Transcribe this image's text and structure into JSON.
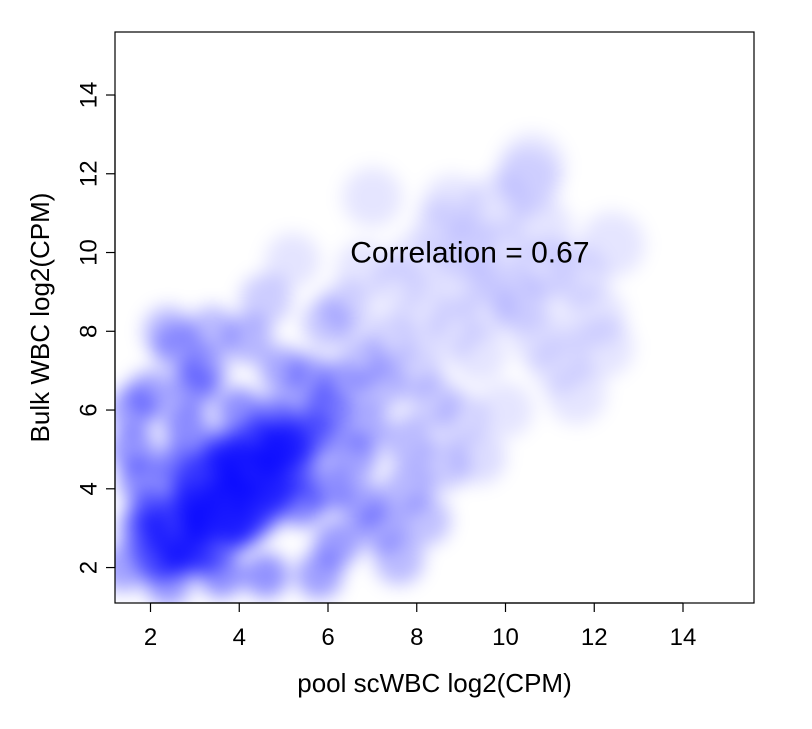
{
  "chart_data": {
    "type": "scatter",
    "style": "smoothScatter density",
    "title": "",
    "xlabel": "pool scWBC log2(CPM)",
    "ylabel": "Bulk WBC log2(CPM)",
    "xlim": [
      1.2,
      15.6
    ],
    "ylim": [
      1.1,
      15.6
    ],
    "xticks": [
      2,
      4,
      6,
      8,
      10,
      12,
      14
    ],
    "yticks": [
      2,
      4,
      6,
      8,
      10,
      12,
      14
    ],
    "xtick_labels": [
      "2",
      "4",
      "6",
      "8",
      "10",
      "12",
      "14"
    ],
    "ytick_labels": [
      "2",
      "4",
      "6",
      "8",
      "10",
      "12",
      "14"
    ],
    "grid": false,
    "density_color": "#0000ff",
    "annotation": {
      "text": "Correlation = 0.67",
      "x": 6.5,
      "y": 10.0
    },
    "density_peak": [
      3.8,
      3.9
    ],
    "series": [
      {
        "points": [
          [
            3.8,
            3.9
          ],
          [
            4.2,
            4.4
          ],
          [
            3.2,
            3.2
          ],
          [
            4.8,
            4.9
          ],
          [
            2.6,
            2.6
          ],
          [
            3.5,
            4.4
          ],
          [
            5.2,
            5.2
          ],
          [
            4.4,
            3.6
          ],
          [
            2.2,
            2.2
          ],
          [
            3.0,
            2.4
          ],
          [
            2.0,
            3.4
          ],
          [
            4.8,
            5.8
          ],
          [
            6.0,
            6.0
          ],
          [
            5.6,
            6.8
          ],
          [
            6.8,
            7.2
          ],
          [
            7.4,
            7.8
          ],
          [
            8.2,
            8.4
          ],
          [
            9.0,
            9.2
          ],
          [
            9.8,
            10.0
          ],
          [
            10.5,
            11.8
          ],
          [
            10.2,
            9.0
          ],
          [
            8.6,
            10.6
          ],
          [
            7.6,
            9.2
          ],
          [
            6.4,
            8.6
          ],
          [
            5.2,
            9.8
          ],
          [
            7.0,
            11.4
          ],
          [
            4.2,
            7.8
          ],
          [
            3.0,
            6.6
          ],
          [
            2.0,
            6.4
          ],
          [
            2.6,
            7.6
          ],
          [
            1.6,
            5.0
          ],
          [
            1.4,
            2.0
          ],
          [
            1.8,
            4.2
          ],
          [
            2.8,
            5.6
          ],
          [
            3.2,
            7.0
          ],
          [
            5.4,
            3.6
          ],
          [
            6.0,
            4.0
          ],
          [
            6.6,
            4.8
          ],
          [
            7.2,
            3.0
          ],
          [
            6.2,
            2.6
          ],
          [
            7.8,
            5.2
          ],
          [
            8.4,
            6.2
          ],
          [
            9.0,
            5.8
          ],
          [
            9.4,
            7.4
          ],
          [
            10.0,
            6.0
          ],
          [
            10.4,
            8.6
          ],
          [
            11.0,
            9.6
          ],
          [
            11.6,
            9.4
          ],
          [
            12.0,
            8.4
          ],
          [
            12.4,
            10.2
          ],
          [
            11.2,
            7.2
          ],
          [
            9.8,
            11.2
          ],
          [
            8.0,
            9.8
          ],
          [
            7.8,
            4.0
          ],
          [
            8.6,
            4.6
          ],
          [
            5.8,
            1.8
          ],
          [
            4.6,
            1.8
          ],
          [
            3.6,
            1.8
          ],
          [
            2.4,
            1.6
          ],
          [
            3.0,
            3.6
          ],
          [
            4.0,
            3.0
          ],
          [
            4.4,
            5.2
          ],
          [
            5.0,
            4.4
          ],
          [
            5.6,
            5.4
          ],
          [
            6.2,
            6.6
          ],
          [
            6.8,
            5.6
          ],
          [
            7.2,
            6.6
          ],
          [
            8.0,
            7.0
          ],
          [
            8.8,
            8.0
          ],
          [
            9.6,
            8.6
          ],
          [
            3.6,
            5.0
          ],
          [
            2.6,
            4.6
          ],
          [
            1.8,
            3.0
          ],
          [
            1.6,
            6.0
          ],
          [
            2.4,
            8.0
          ],
          [
            10.6,
            12.2
          ],
          [
            8.8,
            11.2
          ],
          [
            9.2,
            10.0
          ],
          [
            6.0,
            8.2
          ],
          [
            6.8,
            9.6
          ],
          [
            5.0,
            7.0
          ],
          [
            4.0,
            6.0
          ],
          [
            4.6,
            8.8
          ],
          [
            3.4,
            8.0
          ],
          [
            7.6,
            2.2
          ],
          [
            6.8,
            3.6
          ],
          [
            8.2,
            3.2
          ],
          [
            9.4,
            4.8
          ],
          [
            11.6,
            6.4
          ],
          [
            12.2,
            7.6
          ],
          [
            10.8,
            7.8
          ],
          [
            10.8,
            10.6
          ]
        ]
      }
    ]
  }
}
